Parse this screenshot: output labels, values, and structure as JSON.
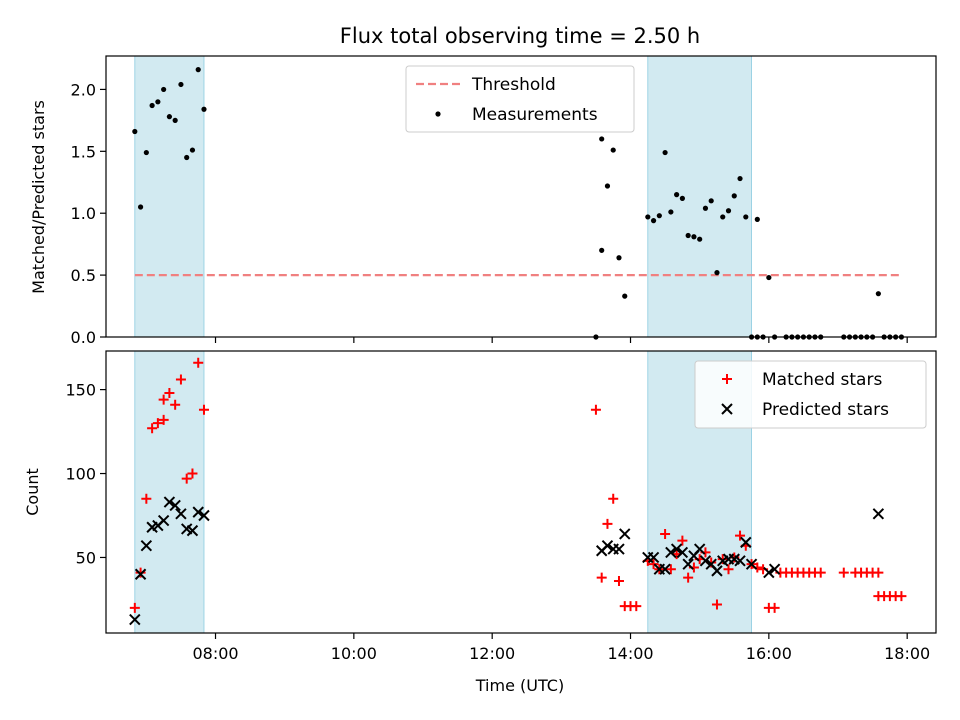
{
  "chart_data": [
    {
      "type": "scatter",
      "title": "Flux total observing time = 2.50 h",
      "xlabel": "",
      "ylabel": "Matched/Predicted stars",
      "xlim": [
        "06:25",
        "18:25"
      ],
      "ylim": [
        0,
        2.27
      ],
      "yticks": [
        0.0,
        0.5,
        1.0,
        1.5,
        2.0
      ],
      "ytick_labels": [
        "0.0",
        "0.5",
        "1.0",
        "1.5",
        "2.0"
      ],
      "xticks": [
        "08:00",
        "10:00",
        "12:00",
        "14:00",
        "16:00",
        "18:00"
      ],
      "shaded_spans": [
        [
          "06:50",
          "07:50"
        ],
        [
          "14:15",
          "15:45"
        ]
      ],
      "threshold": {
        "name": "Threshold",
        "value": 0.5,
        "x_start": "06:50",
        "x_end": "17:55",
        "color": "#f08080"
      },
      "legend": {
        "position": "upper-center",
        "entries": [
          "Threshold",
          "Measurements"
        ]
      },
      "series": [
        {
          "name": "Measurements",
          "color": "#000000",
          "marker": "dot",
          "points": [
            [
              "06:50",
              1.66
            ],
            [
              "06:55",
              1.05
            ],
            [
              "07:00",
              1.49
            ],
            [
              "07:05",
              1.87
            ],
            [
              "07:10",
              1.9
            ],
            [
              "07:15",
              2.0
            ],
            [
              "07:20",
              1.78
            ],
            [
              "07:25",
              1.75
            ],
            [
              "07:30",
              2.04
            ],
            [
              "07:35",
              1.45
            ],
            [
              "07:40",
              1.51
            ],
            [
              "07:45",
              2.16
            ],
            [
              "07:50",
              1.84
            ],
            [
              "13:30",
              0.0
            ],
            [
              "13:35",
              0.7
            ],
            [
              "13:40",
              1.22
            ],
            [
              "13:45",
              1.51
            ],
            [
              "13:50",
              0.64
            ],
            [
              "13:55",
              0.33
            ],
            [
              "13:35",
              1.6
            ],
            [
              "14:15",
              0.97
            ],
            [
              "14:20",
              0.94
            ],
            [
              "14:25",
              0.98
            ],
            [
              "14:30",
              1.49
            ],
            [
              "14:35",
              1.01
            ],
            [
              "14:40",
              1.15
            ],
            [
              "14:45",
              1.12
            ],
            [
              "14:50",
              0.82
            ],
            [
              "14:55",
              0.81
            ],
            [
              "15:00",
              0.79
            ],
            [
              "15:05",
              1.04
            ],
            [
              "15:10",
              1.1
            ],
            [
              "15:15",
              0.52
            ],
            [
              "15:20",
              0.97
            ],
            [
              "15:25",
              1.02
            ],
            [
              "15:30",
              1.14
            ],
            [
              "15:35",
              1.28
            ],
            [
              "15:40",
              0.97
            ],
            [
              "15:50",
              0.95
            ],
            [
              "15:45",
              0.0
            ],
            [
              "15:50",
              0.0
            ],
            [
              "15:55",
              0.0
            ],
            [
              "16:00",
              0.48
            ],
            [
              "16:05",
              0.0
            ],
            [
              "16:15",
              0.0
            ],
            [
              "16:20",
              0.0
            ],
            [
              "16:25",
              0.0
            ],
            [
              "16:30",
              0.0
            ],
            [
              "16:35",
              0.0
            ],
            [
              "16:40",
              0.0
            ],
            [
              "16:45",
              0.0
            ],
            [
              "17:05",
              0.0
            ],
            [
              "17:10",
              0.0
            ],
            [
              "17:15",
              0.0
            ],
            [
              "17:20",
              0.0
            ],
            [
              "17:25",
              0.0
            ],
            [
              "17:30",
              0.0
            ],
            [
              "17:35",
              0.35
            ],
            [
              "17:40",
              0.0
            ],
            [
              "17:45",
              0.0
            ],
            [
              "17:50",
              0.0
            ],
            [
              "17:55",
              0.0
            ]
          ]
        }
      ]
    },
    {
      "type": "scatter",
      "title": "",
      "xlabel": "Time (UTC)",
      "ylabel": "Count",
      "xlim": [
        "06:25",
        "18:25"
      ],
      "ylim": [
        5,
        173
      ],
      "yticks": [
        50,
        100,
        150
      ],
      "ytick_labels": [
        "50",
        "100",
        "150"
      ],
      "xticks": [
        "08:00",
        "10:00",
        "12:00",
        "14:00",
        "16:00",
        "18:00"
      ],
      "xtick_labels": [
        "08:00",
        "10:00",
        "12:00",
        "14:00",
        "16:00",
        "18:00"
      ],
      "shaded_spans": [
        [
          "06:50",
          "07:50"
        ],
        [
          "14:15",
          "15:45"
        ]
      ],
      "legend": {
        "position": "upper-right",
        "entries": [
          "Matched stars",
          "Predicted stars"
        ]
      },
      "series": [
        {
          "name": "Matched stars",
          "color": "#ff0000",
          "marker": "plus",
          "points": [
            [
              "06:50",
              20
            ],
            [
              "06:55",
              41
            ],
            [
              "07:00",
              85
            ],
            [
              "07:05",
              127
            ],
            [
              "07:10",
              130
            ],
            [
              "07:15",
              132
            ],
            [
              "07:15",
              144
            ],
            [
              "07:20",
              148
            ],
            [
              "07:25",
              141
            ],
            [
              "07:30",
              156
            ],
            [
              "07:35",
              97
            ],
            [
              "07:40",
              100
            ],
            [
              "07:45",
              166
            ],
            [
              "07:50",
              138
            ],
            [
              "13:30",
              138
            ],
            [
              "13:35",
              38
            ],
            [
              "13:40",
              70
            ],
            [
              "13:45",
              85
            ],
            [
              "13:50",
              36
            ],
            [
              "13:55",
              21
            ],
            [
              "14:00",
              21
            ],
            [
              "14:05",
              21
            ],
            [
              "14:15",
              48
            ],
            [
              "14:20",
              46
            ],
            [
              "14:25",
              43
            ],
            [
              "14:30",
              64
            ],
            [
              "14:35",
              43
            ],
            [
              "14:40",
              52
            ],
            [
              "14:45",
              60
            ],
            [
              "14:50",
              38
            ],
            [
              "14:55",
              44
            ],
            [
              "15:00",
              49
            ],
            [
              "15:05",
              53
            ],
            [
              "15:10",
              47
            ],
            [
              "15:15",
              22
            ],
            [
              "15:20",
              49
            ],
            [
              "15:25",
              43
            ],
            [
              "15:30",
              50
            ],
            [
              "15:35",
              63
            ],
            [
              "15:40",
              57
            ],
            [
              "15:45",
              46
            ],
            [
              "15:50",
              44
            ],
            [
              "15:55",
              43
            ],
            [
              "16:00",
              20
            ],
            [
              "16:05",
              20
            ],
            [
              "16:10",
              41
            ],
            [
              "16:15",
              41
            ],
            [
              "16:20",
              41
            ],
            [
              "16:25",
              41
            ],
            [
              "16:30",
              41
            ],
            [
              "16:35",
              41
            ],
            [
              "16:40",
              41
            ],
            [
              "16:45",
              41
            ],
            [
              "17:05",
              41
            ],
            [
              "17:15",
              41
            ],
            [
              "17:20",
              41
            ],
            [
              "17:25",
              41
            ],
            [
              "17:30",
              41
            ],
            [
              "17:35",
              41
            ],
            [
              "17:35",
              27
            ],
            [
              "17:40",
              27
            ],
            [
              "17:45",
              27
            ],
            [
              "17:50",
              27
            ],
            [
              "17:55",
              27
            ]
          ]
        },
        {
          "name": "Predicted stars",
          "color": "#000000",
          "marker": "x",
          "points": [
            [
              "06:50",
              13
            ],
            [
              "06:55",
              40
            ],
            [
              "07:00",
              57
            ],
            [
              "07:05",
              68
            ],
            [
              "07:10",
              69
            ],
            [
              "07:15",
              72
            ],
            [
              "07:20",
              83
            ],
            [
              "07:25",
              81
            ],
            [
              "07:30",
              76
            ],
            [
              "07:35",
              67
            ],
            [
              "07:40",
              66
            ],
            [
              "07:45",
              77
            ],
            [
              "07:50",
              75
            ],
            [
              "13:35",
              54
            ],
            [
              "13:40",
              57
            ],
            [
              "13:45",
              55
            ],
            [
              "13:50",
              55
            ],
            [
              "13:55",
              64
            ],
            [
              "14:15",
              50
            ],
            [
              "14:20",
              50
            ],
            [
              "14:25",
              43
            ],
            [
              "14:30",
              43
            ],
            [
              "14:35",
              53
            ],
            [
              "14:40",
              55
            ],
            [
              "14:45",
              53
            ],
            [
              "14:50",
              46
            ],
            [
              "14:55",
              51
            ],
            [
              "15:00",
              55
            ],
            [
              "15:05",
              48
            ],
            [
              "15:10",
              46
            ],
            [
              "15:15",
              42
            ],
            [
              "15:20",
              48
            ],
            [
              "15:25",
              49
            ],
            [
              "15:30",
              49
            ],
            [
              "15:35",
              48
            ],
            [
              "15:40",
              59
            ],
            [
              "15:45",
              46
            ],
            [
              "16:00",
              41
            ],
            [
              "16:05",
              43
            ],
            [
              "17:35",
              76
            ]
          ]
        }
      ]
    }
  ]
}
